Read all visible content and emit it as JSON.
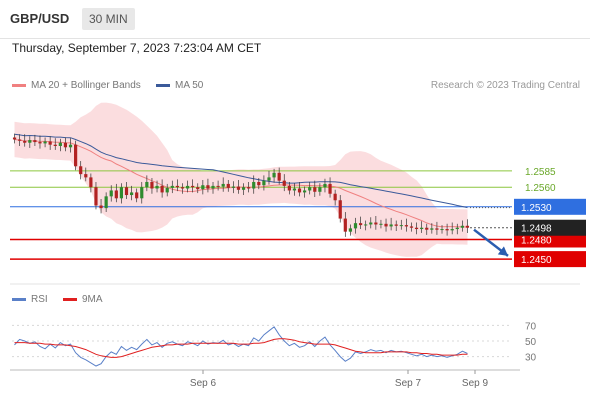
{
  "header": {
    "symbol": "GBP/USD",
    "timeframe": "30 MIN"
  },
  "datetime": "Thursday, September 7, 2023 7:23:04 AM CET",
  "legend": {
    "ma20": {
      "label": "MA 20 + Bollinger Bands",
      "color": "#f08080"
    },
    "ma50": {
      "label": "MA 50",
      "color": "#3b5a9a"
    }
  },
  "credit": "Research © 2023 Trading Central",
  "rsi_legend": {
    "rsi": {
      "label": "RSI",
      "color": "#5a80c8"
    },
    "ma9": {
      "label": "9MA",
      "color": "#e02020"
    }
  },
  "chart_data": [
    {
      "type": "candlestick",
      "title": "GBP/USD 30 MIN",
      "ylim": [
        1.2415,
        1.2675
      ],
      "x_ticks": [
        "Sep 6",
        "Sep 7",
        "Sep 9"
      ],
      "current_price": {
        "value": 1.2498,
        "label": "1.2498",
        "color": "#222222"
      },
      "levels": [
        {
          "value": 1.2585,
          "label": "1.2585",
          "type": "resistance",
          "color": "#8cc63f"
        },
        {
          "value": 1.256,
          "label": "1.2560",
          "type": "resistance",
          "color": "#8cc63f"
        },
        {
          "value": 1.253,
          "label": "1.2530",
          "type": "pivot",
          "color": "#2f6fe0"
        },
        {
          "value": 1.248,
          "label": "1.2480",
          "type": "support",
          "color": "#e00000"
        },
        {
          "value": 1.245,
          "label": "1.2450",
          "type": "support",
          "color": "#e00000"
        }
      ],
      "forecast": {
        "from": 1.2495,
        "to": 1.2455,
        "direction": "down",
        "color": "#2a5db0"
      },
      "close_series": [
        1.2633,
        1.2631,
        1.2628,
        1.2632,
        1.2629,
        1.2627,
        1.263,
        1.2625,
        1.2623,
        1.2628,
        1.2621,
        1.2625,
        1.2592,
        1.258,
        1.2575,
        1.256,
        1.2532,
        1.2528,
        1.2546,
        1.2555,
        1.2543,
        1.256,
        1.2548,
        1.2552,
        1.2543,
        1.256,
        1.2568,
        1.2558,
        1.2562,
        1.2552,
        1.2559,
        1.2562,
        1.256,
        1.2558,
        1.2562,
        1.256,
        1.2557,
        1.2563,
        1.2558,
        1.2562,
        1.2561,
        1.2565,
        1.2559,
        1.2561,
        1.2556,
        1.256,
        1.2558,
        1.2568,
        1.2563,
        1.257,
        1.2575,
        1.2582,
        1.257,
        1.2562,
        1.2555,
        1.2558,
        1.2552,
        1.2555,
        1.256,
        1.2553,
        1.256,
        1.2565,
        1.255,
        1.254,
        1.2512,
        1.2492,
        1.2497,
        1.2505,
        1.2502,
        1.2503,
        1.2506,
        1.2503,
        1.2504,
        1.25,
        1.2503,
        1.2501,
        1.2502,
        1.25,
        1.2498,
        1.2496,
        1.2498,
        1.2495,
        1.2497,
        1.2495,
        1.2496,
        1.2494,
        1.2496,
        1.2498,
        1.2501,
        1.2498
      ]
    },
    {
      "type": "line",
      "title": "RSI",
      "ylim": [
        18,
        82
      ],
      "y_ticks": [
        70,
        50,
        30
      ],
      "series": [
        {
          "name": "RSI",
          "values": [
            45,
            52,
            50,
            47,
            49,
            43,
            40,
            46,
            41,
            48,
            44,
            46,
            35,
            29,
            26,
            22,
            18,
            21,
            30,
            36,
            33,
            43,
            38,
            42,
            39,
            46,
            52,
            45,
            48,
            42,
            47,
            49,
            46,
            44,
            49,
            47,
            44,
            50,
            46,
            48,
            47,
            51,
            45,
            47,
            43,
            46,
            44,
            54,
            50,
            58,
            63,
            68,
            58,
            50,
            44,
            47,
            42,
            44,
            49,
            43,
            50,
            55,
            45,
            38,
            30,
            24,
            28,
            36,
            34,
            36,
            39,
            37,
            38,
            35,
            38,
            36,
            37,
            35,
            33,
            31,
            33,
            30,
            32,
            30,
            31,
            29,
            31,
            33,
            37,
            34
          ]
        },
        {
          "name": "9MA",
          "values": [
            48,
            48,
            48,
            47,
            47,
            47,
            46,
            46,
            45,
            45,
            45,
            44,
            43,
            41,
            39,
            36,
            33,
            31,
            30,
            29,
            29,
            30,
            32,
            34,
            36,
            38,
            40,
            42,
            43,
            44,
            45,
            45,
            46,
            46,
            46,
            47,
            47,
            47,
            47,
            47,
            47,
            47,
            47,
            47,
            46,
            46,
            46,
            47,
            47,
            48,
            50,
            52,
            53,
            53,
            52,
            51,
            49,
            48,
            47,
            46,
            46,
            46,
            46,
            45,
            43,
            41,
            39,
            37,
            36,
            35,
            35,
            35,
            35,
            36,
            36,
            36,
            36,
            36,
            35,
            35,
            34,
            34,
            33,
            33,
            32,
            32,
            32,
            32,
            33,
            33
          ]
        }
      ]
    }
  ]
}
